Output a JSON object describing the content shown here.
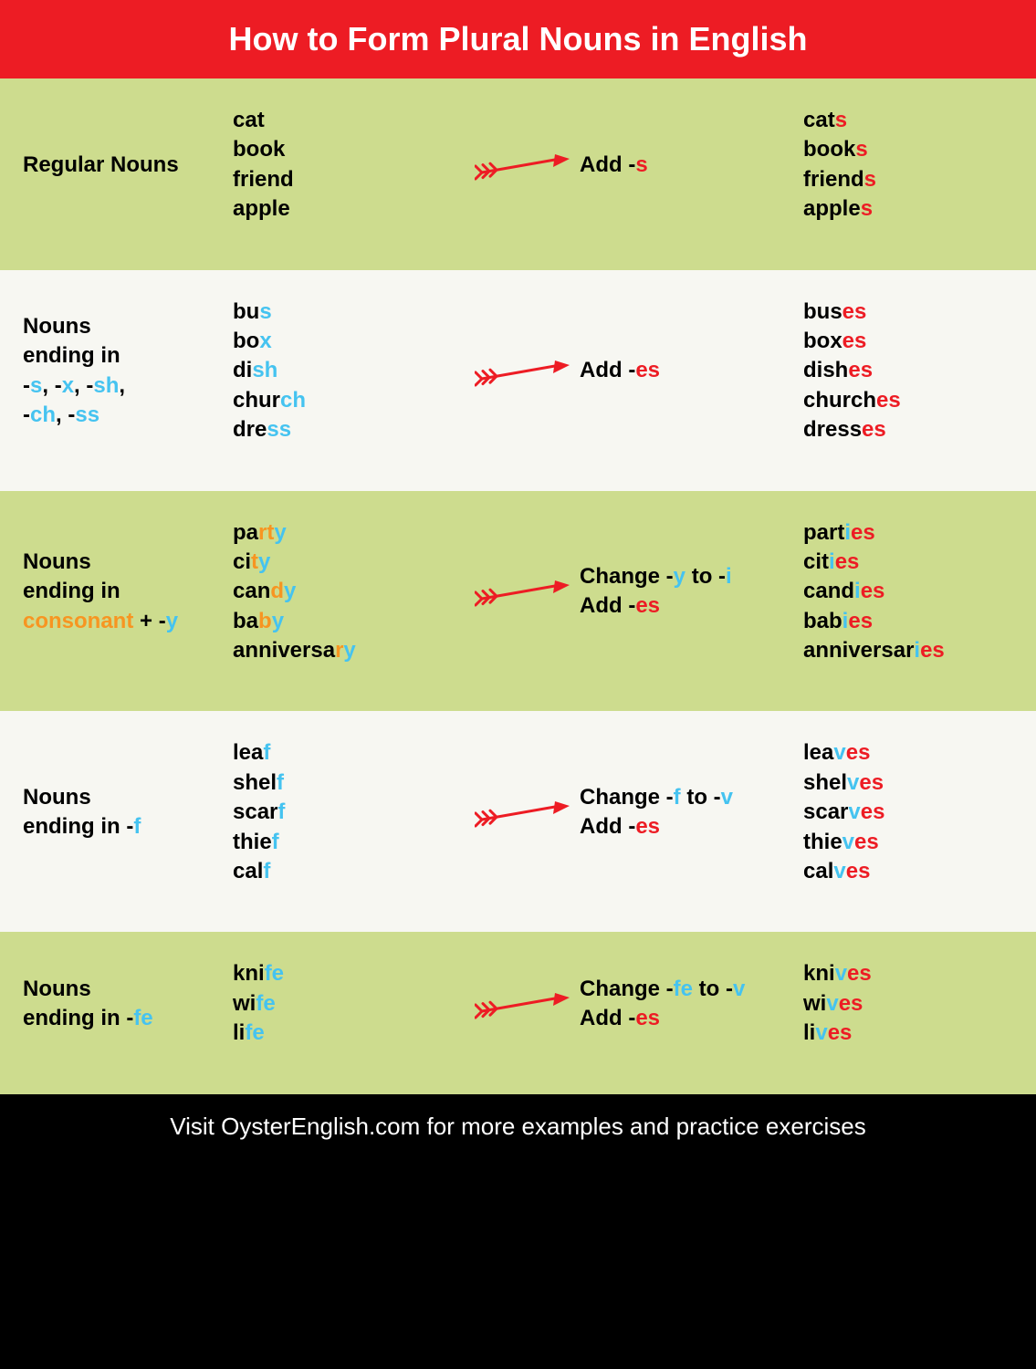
{
  "colors": {
    "header_bg": "#ed1c24",
    "header_text": "#ffffff",
    "row_green": "#cddc8e",
    "row_white": "#f7f7f2",
    "footer_bg": "#000000",
    "footer_text": "#ffffff",
    "black": "#000000",
    "red": "#ed1c24",
    "blue": "#45c3f0",
    "orange": "#f79521",
    "arrow": "#ed1c24"
  },
  "header": {
    "title": "How to Form Plural Nouns in English"
  },
  "footer": {
    "text": "Visit OysterEnglish.com for more examples and practice exercises"
  },
  "rows": [
    {
      "bg": "green",
      "label": [
        {
          "t": "Regular Nouns",
          "c": "black"
        }
      ],
      "examples": [
        [
          {
            "t": "cat",
            "c": "black"
          }
        ],
        [
          {
            "t": "book",
            "c": "black"
          }
        ],
        [
          {
            "t": "friend",
            "c": "black"
          }
        ],
        [
          {
            "t": "apple",
            "c": "black"
          }
        ]
      ],
      "rule": [
        [
          {
            "t": "Add -",
            "c": "black"
          },
          {
            "t": "s",
            "c": "red"
          }
        ]
      ],
      "plurals": [
        [
          {
            "t": "cat",
            "c": "black"
          },
          {
            "t": "s",
            "c": "red"
          }
        ],
        [
          {
            "t": "book",
            "c": "black"
          },
          {
            "t": "s",
            "c": "red"
          }
        ],
        [
          {
            "t": "friend",
            "c": "black"
          },
          {
            "t": "s",
            "c": "red"
          }
        ],
        [
          {
            "t": "apple",
            "c": "black"
          },
          {
            "t": "s",
            "c": "red"
          }
        ]
      ]
    },
    {
      "bg": "white",
      "label": [
        {
          "t": "Nouns\nending in\n",
          "c": "black"
        },
        {
          "t": "-",
          "c": "black"
        },
        {
          "t": "s",
          "c": "blue"
        },
        {
          "t": ", -",
          "c": "black"
        },
        {
          "t": "x",
          "c": "blue"
        },
        {
          "t": ", -",
          "c": "black"
        },
        {
          "t": "sh",
          "c": "blue"
        },
        {
          "t": ",\n-",
          "c": "black"
        },
        {
          "t": "ch",
          "c": "blue"
        },
        {
          "t": ", -",
          "c": "black"
        },
        {
          "t": "ss",
          "c": "blue"
        }
      ],
      "examples": [
        [
          {
            "t": "bu",
            "c": "black"
          },
          {
            "t": "s",
            "c": "blue"
          }
        ],
        [
          {
            "t": "bo",
            "c": "black"
          },
          {
            "t": "x",
            "c": "blue"
          }
        ],
        [
          {
            "t": "di",
            "c": "black"
          },
          {
            "t": "sh",
            "c": "blue"
          }
        ],
        [
          {
            "t": "chur",
            "c": "black"
          },
          {
            "t": "ch",
            "c": "blue"
          }
        ],
        [
          {
            "t": "dre",
            "c": "black"
          },
          {
            "t": "ss",
            "c": "blue"
          }
        ]
      ],
      "rule": [
        [
          {
            "t": "Add -",
            "c": "black"
          },
          {
            "t": "es",
            "c": "red"
          }
        ]
      ],
      "plurals": [
        [
          {
            "t": "bus",
            "c": "black"
          },
          {
            "t": "es",
            "c": "red"
          }
        ],
        [
          {
            "t": "box",
            "c": "black"
          },
          {
            "t": "es",
            "c": "red"
          }
        ],
        [
          {
            "t": "dish",
            "c": "black"
          },
          {
            "t": "es",
            "c": "red"
          }
        ],
        [
          {
            "t": "church",
            "c": "black"
          },
          {
            "t": "es",
            "c": "red"
          }
        ],
        [
          {
            "t": "dress",
            "c": "black"
          },
          {
            "t": "es",
            "c": "red"
          }
        ]
      ]
    },
    {
      "bg": "green",
      "label": [
        {
          "t": "Nouns\nending in\n",
          "c": "black"
        },
        {
          "t": "consonant",
          "c": "orange"
        },
        {
          "t": " + -",
          "c": "black"
        },
        {
          "t": "y",
          "c": "blue"
        }
      ],
      "examples": [
        [
          {
            "t": "pa",
            "c": "black"
          },
          {
            "t": "r",
            "c": "orange"
          },
          {
            "t": "t",
            "c": "orange"
          },
          {
            "t": "y",
            "c": "blue"
          }
        ],
        [
          {
            "t": "ci",
            "c": "black"
          },
          {
            "t": "t",
            "c": "orange"
          },
          {
            "t": "y",
            "c": "blue"
          }
        ],
        [
          {
            "t": "can",
            "c": "black"
          },
          {
            "t": "d",
            "c": "orange"
          },
          {
            "t": "y",
            "c": "blue"
          }
        ],
        [
          {
            "t": "ba",
            "c": "black"
          },
          {
            "t": "b",
            "c": "orange"
          },
          {
            "t": "y",
            "c": "blue"
          }
        ],
        [
          {
            "t": "anniversa",
            "c": "black"
          },
          {
            "t": "r",
            "c": "orange"
          },
          {
            "t": "y",
            "c": "blue"
          }
        ]
      ],
      "rule": [
        [
          {
            "t": "Change -",
            "c": "black"
          },
          {
            "t": "y",
            "c": "blue"
          },
          {
            "t": " to -",
            "c": "black"
          },
          {
            "t": "i",
            "c": "blue"
          }
        ],
        [
          {
            "t": "Add -",
            "c": "black"
          },
          {
            "t": "es",
            "c": "red"
          }
        ]
      ],
      "plurals": [
        [
          {
            "t": "part",
            "c": "black"
          },
          {
            "t": "i",
            "c": "blue"
          },
          {
            "t": "es",
            "c": "red"
          }
        ],
        [
          {
            "t": "cit",
            "c": "black"
          },
          {
            "t": "i",
            "c": "blue"
          },
          {
            "t": "es",
            "c": "red"
          }
        ],
        [
          {
            "t": "cand",
            "c": "black"
          },
          {
            "t": "i",
            "c": "blue"
          },
          {
            "t": "es",
            "c": "red"
          }
        ],
        [
          {
            "t": "bab",
            "c": "black"
          },
          {
            "t": "i",
            "c": "blue"
          },
          {
            "t": "es",
            "c": "red"
          }
        ],
        [
          {
            "t": "anniversar",
            "c": "black"
          },
          {
            "t": "i",
            "c": "blue"
          },
          {
            "t": "es",
            "c": "red"
          }
        ]
      ]
    },
    {
      "bg": "white",
      "label": [
        {
          "t": "Nouns\nending in -",
          "c": "black"
        },
        {
          "t": "f",
          "c": "blue"
        }
      ],
      "examples": [
        [
          {
            "t": "lea",
            "c": "black"
          },
          {
            "t": "f",
            "c": "blue"
          }
        ],
        [
          {
            "t": "shel",
            "c": "black"
          },
          {
            "t": "f",
            "c": "blue"
          }
        ],
        [
          {
            "t": "scar",
            "c": "black"
          },
          {
            "t": "f",
            "c": "blue"
          }
        ],
        [
          {
            "t": "thie",
            "c": "black"
          },
          {
            "t": "f",
            "c": "blue"
          }
        ],
        [
          {
            "t": "cal",
            "c": "black"
          },
          {
            "t": "f",
            "c": "blue"
          }
        ]
      ],
      "rule": [
        [
          {
            "t": "Change -",
            "c": "black"
          },
          {
            "t": "f",
            "c": "blue"
          },
          {
            "t": " to -",
            "c": "black"
          },
          {
            "t": "v",
            "c": "blue"
          }
        ],
        [
          {
            "t": "Add -",
            "c": "black"
          },
          {
            "t": "es",
            "c": "red"
          }
        ]
      ],
      "plurals": [
        [
          {
            "t": "lea",
            "c": "black"
          },
          {
            "t": "v",
            "c": "blue"
          },
          {
            "t": "es",
            "c": "red"
          }
        ],
        [
          {
            "t": "shel",
            "c": "black"
          },
          {
            "t": "v",
            "c": "blue"
          },
          {
            "t": "es",
            "c": "red"
          }
        ],
        [
          {
            "t": "scar",
            "c": "black"
          },
          {
            "t": "v",
            "c": "blue"
          },
          {
            "t": "es",
            "c": "red"
          }
        ],
        [
          {
            "t": "thie",
            "c": "black"
          },
          {
            "t": "v",
            "c": "blue"
          },
          {
            "t": "es",
            "c": "red"
          }
        ],
        [
          {
            "t": "cal",
            "c": "black"
          },
          {
            "t": "v",
            "c": "blue"
          },
          {
            "t": "es",
            "c": "red"
          }
        ]
      ]
    },
    {
      "bg": "green",
      "label": [
        {
          "t": "Nouns\nending in -",
          "c": "black"
        },
        {
          "t": "fe",
          "c": "blue"
        }
      ],
      "examples": [
        [
          {
            "t": "kni",
            "c": "black"
          },
          {
            "t": "fe",
            "c": "blue"
          }
        ],
        [
          {
            "t": "wi",
            "c": "black"
          },
          {
            "t": "fe",
            "c": "blue"
          }
        ],
        [
          {
            "t": "li",
            "c": "black"
          },
          {
            "t": "fe",
            "c": "blue"
          }
        ]
      ],
      "rule": [
        [
          {
            "t": "Change -",
            "c": "black"
          },
          {
            "t": "fe",
            "c": "blue"
          },
          {
            "t": " to -",
            "c": "black"
          },
          {
            "t": "v",
            "c": "blue"
          }
        ],
        [
          {
            "t": "Add -",
            "c": "black"
          },
          {
            "t": "es",
            "c": "red"
          }
        ]
      ],
      "plurals": [
        [
          {
            "t": "kni",
            "c": "black"
          },
          {
            "t": "v",
            "c": "blue"
          },
          {
            "t": "es",
            "c": "red"
          }
        ],
        [
          {
            "t": "wi",
            "c": "black"
          },
          {
            "t": "v",
            "c": "blue"
          },
          {
            "t": "es",
            "c": "red"
          }
        ],
        [
          {
            "t": "li",
            "c": "black"
          },
          {
            "t": "v",
            "c": "blue"
          },
          {
            "t": "es",
            "c": "red"
          }
        ]
      ]
    }
  ]
}
